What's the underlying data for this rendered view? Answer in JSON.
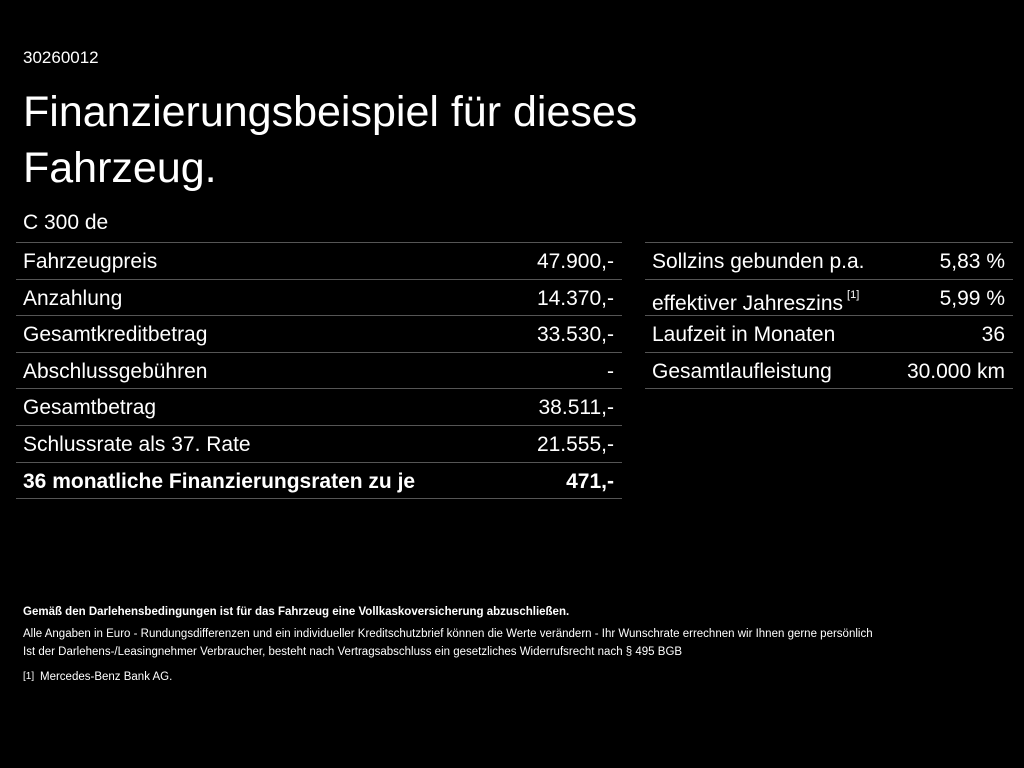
{
  "header": {
    "id": "30260012",
    "title": "Finanzierungsbeispiel für dieses Fahrzeug.",
    "model": "C 300 de"
  },
  "left_table": {
    "rows": [
      [
        "Fahrzeugpreis",
        "47.900,-"
      ],
      [
        "Anzahlung",
        "14.370,-"
      ],
      [
        "Gesamtkreditbetrag",
        "33.530,-"
      ],
      [
        "Abschlussgebühren",
        "-"
      ],
      [
        "Gesamtbetrag",
        "38.511,-"
      ],
      [
        "Schlussrate als 37. Rate",
        "21.555,-"
      ],
      [
        "36 monatliche Finanzierungsraten zu je",
        "471,-"
      ]
    ]
  },
  "right_table": {
    "rows": [
      [
        "Sollzins gebunden p.a.",
        "5,83 %"
      ],
      [
        "effektiver Jahreszins",
        "5,99 %"
      ],
      [
        "Laufzeit in Monaten",
        "36"
      ],
      [
        "Gesamtlaufleistung",
        "30.000 km"
      ]
    ],
    "footnote_ref": "[1]"
  },
  "footer": {
    "notice": "Gemäß den Darlehensbedingungen ist für das Fahrzeug eine Vollkaskoversicherung abzuschließen.",
    "lines": [
      "Alle Angaben in Euro - Rundungsdifferenzen und ein individueller Kreditschutzbrief können die Werte verändern - Ihr Wunschrate errechnen wir Ihnen gerne persönlich",
      "Ist der Darlehens-/Leasingnehmer Verbraucher, besteht nach Vertragsabschluss ein gesetzliches Widerrufsrecht nach § 495 BGB"
    ],
    "footnote_mark": "[1]",
    "footnote_text": "Mercedes-Benz Bank AG."
  }
}
